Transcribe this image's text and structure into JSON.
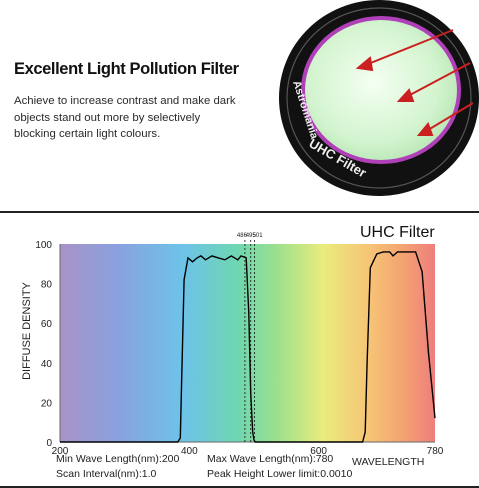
{
  "ad": {
    "headline": "Excellent Light Pollution Filter",
    "description": "Achieve to increase contrast and make dark objects stand out more by selectively blocking certain light colours.",
    "lens_brand": "Astromania",
    "lens_model": "UHC Filter"
  },
  "colors": {
    "ring": "#1a1a1a",
    "glass": "#d8f6d4",
    "coating": "#b040b8",
    "arrow": "#cc1f1f",
    "curve": "#000000"
  },
  "chart_data": {
    "type": "line",
    "title": "UHC Filter",
    "xlabel": "WAVELENGTH",
    "ylabel": "DIFFUSE DENSITY",
    "xlim": [
      200,
      780
    ],
    "ylim": [
      0,
      100
    ],
    "x_ticks": [
      200,
      400,
      600,
      780
    ],
    "y_ticks": [
      0,
      20,
      40,
      60,
      80,
      100
    ],
    "grid": false,
    "background": "visible-spectrum gradient",
    "marker_lines": [
      {
        "x": 486,
        "label": "486"
      },
      {
        "x": 495,
        "label": "495"
      },
      {
        "x": 501,
        "label": "501"
      }
    ],
    "series": [
      {
        "x": [
          200,
          270,
          360,
          375,
          382,
          386,
          388,
          392,
          398,
          405,
          412,
          418,
          425,
          435,
          445,
          455,
          465,
          475,
          480,
          488,
          492,
          495,
          498,
          500,
          502,
          504,
          507,
          510,
          520,
          600,
          660,
          668,
          672,
          675,
          680,
          690,
          700,
          710,
          715,
          722,
          730,
          740,
          750,
          760,
          770,
          780
        ],
        "y": [
          0,
          0,
          0,
          0,
          0,
          2,
          30,
          82,
          93,
          91,
          93,
          94,
          92,
          94,
          93,
          92,
          94,
          92,
          94,
          93,
          65,
          25,
          5,
          1,
          0,
          0,
          0,
          0,
          0,
          0,
          0,
          0,
          5,
          40,
          88,
          95,
          96,
          96,
          94,
          96,
          96,
          96,
          96,
          86,
          45,
          12
        ]
      }
    ],
    "footer": {
      "min_wave": "Min Wave Length(nm):200",
      "max_wave": "Max Wave Length(nm):780",
      "scan_interval": "Scan Interval(nm):1.0",
      "peak_limit": "Peak Height Lower limit:0.0010"
    }
  }
}
